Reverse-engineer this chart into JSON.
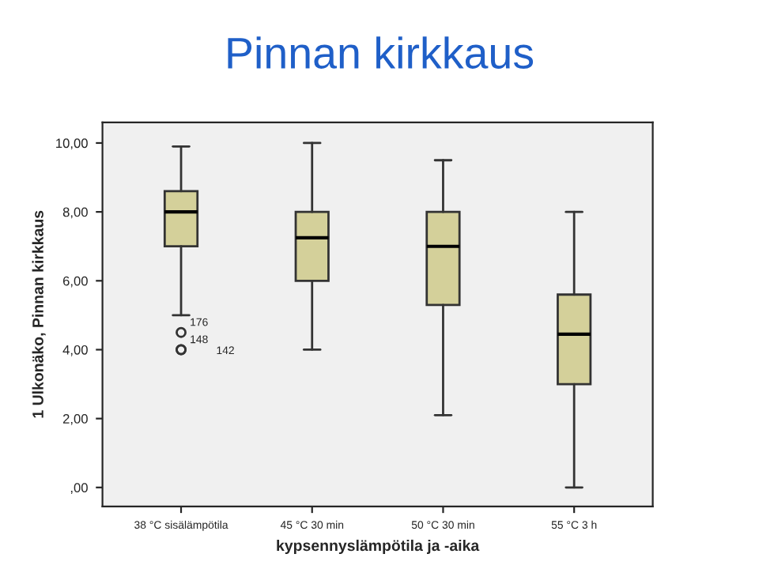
{
  "chart_data": {
    "type": "box",
    "title": "Pinnan kirkkaus",
    "xlabel": "kypsennyslämpötila ja -aika",
    "ylabel": "1 Ulkonäko, Pinnan kirkkaus",
    "categories": [
      "38 °C sisälämpötila",
      "45 °C 30 min",
      "50 °C 30 min",
      "55 °C 3 h"
    ],
    "color": "#d4d09a",
    "boxes": [
      {
        "low": 5.0,
        "q1": 7.0,
        "median": 8.0,
        "q3": 8.6,
        "high": 9.9,
        "outliers": [
          4.5,
          4.0,
          4.0
        ]
      },
      {
        "low": 4.0,
        "q1": 6.0,
        "median": 7.25,
        "q3": 8.0,
        "high": 10.0
      },
      {
        "low": 2.1,
        "q1": 5.3,
        "median": 7.0,
        "q3": 8.0,
        "high": 9.5
      },
      {
        "low": 0.0,
        "q1": 3.0,
        "median": 4.45,
        "q3": 5.6,
        "high": 8.0
      }
    ],
    "annotations": [
      "176",
      "148",
      "142"
    ],
    "ylim": [
      -0.55,
      10.6
    ],
    "yticks": [
      {
        "value": 0,
        "label": ",00"
      },
      {
        "value": 2,
        "label": "2,00"
      },
      {
        "value": 4,
        "label": "4,00"
      },
      {
        "value": 6,
        "label": "6,00"
      },
      {
        "value": 8,
        "label": "8,00"
      },
      {
        "value": 10,
        "label": "10,00"
      }
    ],
    "grid": false,
    "legend": false
  }
}
